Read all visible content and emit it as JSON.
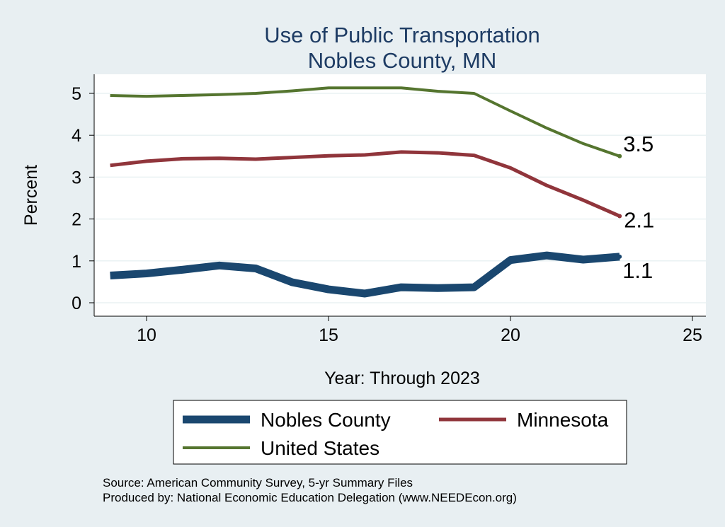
{
  "chart_data": {
    "type": "line",
    "title": "Use of Public Transportation",
    "subtitle": "Nobles County, MN",
    "xlabel": "Year: Through 2023",
    "ylabel": "Percent",
    "xlim": [
      8.5,
      25.3
    ],
    "ylim": [
      -0.33,
      5.45
    ],
    "xticks": [
      10,
      15,
      20,
      25
    ],
    "yticks": [
      0,
      1,
      2,
      3,
      4,
      5
    ],
    "grid": true,
    "legend_placement": "bottom",
    "x": [
      9,
      10,
      11,
      12,
      13,
      14,
      15,
      16,
      17,
      18,
      19,
      20,
      21,
      22,
      23
    ],
    "series": [
      {
        "name": "Nobles County",
        "color": "#1a476f",
        "end_label": "1.1",
        "values": [
          0.65,
          0.7,
          0.79,
          0.89,
          0.82,
          0.49,
          0.32,
          0.22,
          0.37,
          0.35,
          0.37,
          1.02,
          1.13,
          1.03,
          1.1
        ]
      },
      {
        "name": "Minnesota",
        "color": "#90353b",
        "end_label": "2.1",
        "values": [
          3.28,
          3.38,
          3.44,
          3.45,
          3.43,
          3.47,
          3.51,
          3.53,
          3.6,
          3.58,
          3.52,
          3.22,
          2.8,
          2.45,
          2.07
        ]
      },
      {
        "name": "United States",
        "color": "#55752f",
        "end_label": "3.5",
        "values": [
          4.95,
          4.93,
          4.95,
          4.97,
          5.0,
          5.06,
          5.13,
          5.13,
          5.13,
          5.05,
          5.0,
          4.58,
          4.17,
          3.8,
          3.5
        ]
      }
    ],
    "notes": [
      "Source: American Community Survey, 5-yr Summary Files",
      "Produced by: National Economic Education Delegation (www.NEEDEcon.org)"
    ]
  }
}
